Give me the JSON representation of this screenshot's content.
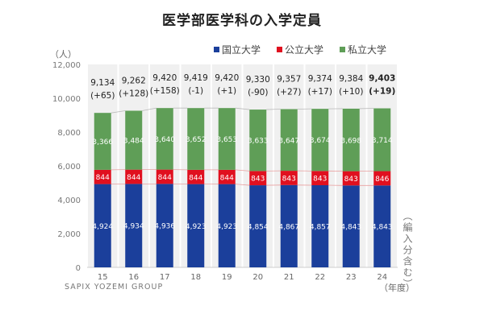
{
  "chart_data": {
    "type": "bar",
    "stacked": true,
    "title": "医学部医学科の入学定員",
    "ylabel": "（人）",
    "xlabel": "（年度）",
    "annotation": "（編入分含む）",
    "source": "SAPIX YOZEMI GROUP",
    "ylim": [
      0,
      12000
    ],
    "yticks": [
      "0",
      "2,000",
      "4,000",
      "6,000",
      "8,000",
      "10,000",
      "12,000"
    ],
    "ytick_values": [
      0,
      2000,
      4000,
      6000,
      8000,
      10000,
      12000
    ],
    "legend_position": "top-right",
    "categories": [
      "15",
      "16",
      "17",
      "18",
      "19",
      "20",
      "21",
      "22",
      "23",
      "24"
    ],
    "series": [
      {
        "name": "国立大学",
        "color": "#1b3f9b",
        "values": [
          4924,
          4934,
          4936,
          4923,
          4923,
          4854,
          4867,
          4857,
          4843,
          4843
        ],
        "labels": [
          "4,924",
          "4,934",
          "4,936",
          "4,923",
          "4,923",
          "4,854",
          "4,867",
          "4,857",
          "4,843",
          "4,843"
        ]
      },
      {
        "name": "公立大学",
        "color": "#e0101f",
        "values": [
          844,
          844,
          844,
          844,
          844,
          843,
          843,
          843,
          843,
          846
        ],
        "labels": [
          "844",
          "844",
          "844",
          "844",
          "844",
          "843",
          "843",
          "843",
          "843",
          "846"
        ]
      },
      {
        "name": "私立大学",
        "color": "#5f9e57",
        "values": [
          3366,
          3484,
          3640,
          3652,
          3653,
          3633,
          3647,
          3674,
          3698,
          3714
        ],
        "labels": [
          "3,366",
          "3,484",
          "3,640",
          "3,652",
          "3,653",
          "3,633",
          "3,647",
          "3,674",
          "3,698",
          "3,714"
        ]
      }
    ],
    "totals": [
      9134,
      9262,
      9420,
      9419,
      9420,
      9330,
      9357,
      9374,
      9384,
      9403
    ],
    "total_labels": [
      "9,134",
      "9,262",
      "9,420",
      "9,419",
      "9,420",
      "9,330",
      "9,357",
      "9,374",
      "9,384",
      "9,403"
    ],
    "change_labels": [
      "(+65)",
      "(+128)",
      "(+158)",
      "(-1)",
      "(+1)",
      "(-90)",
      "(+27)",
      "(+17)",
      "(+10)",
      "(+19)"
    ],
    "grid": false
  }
}
